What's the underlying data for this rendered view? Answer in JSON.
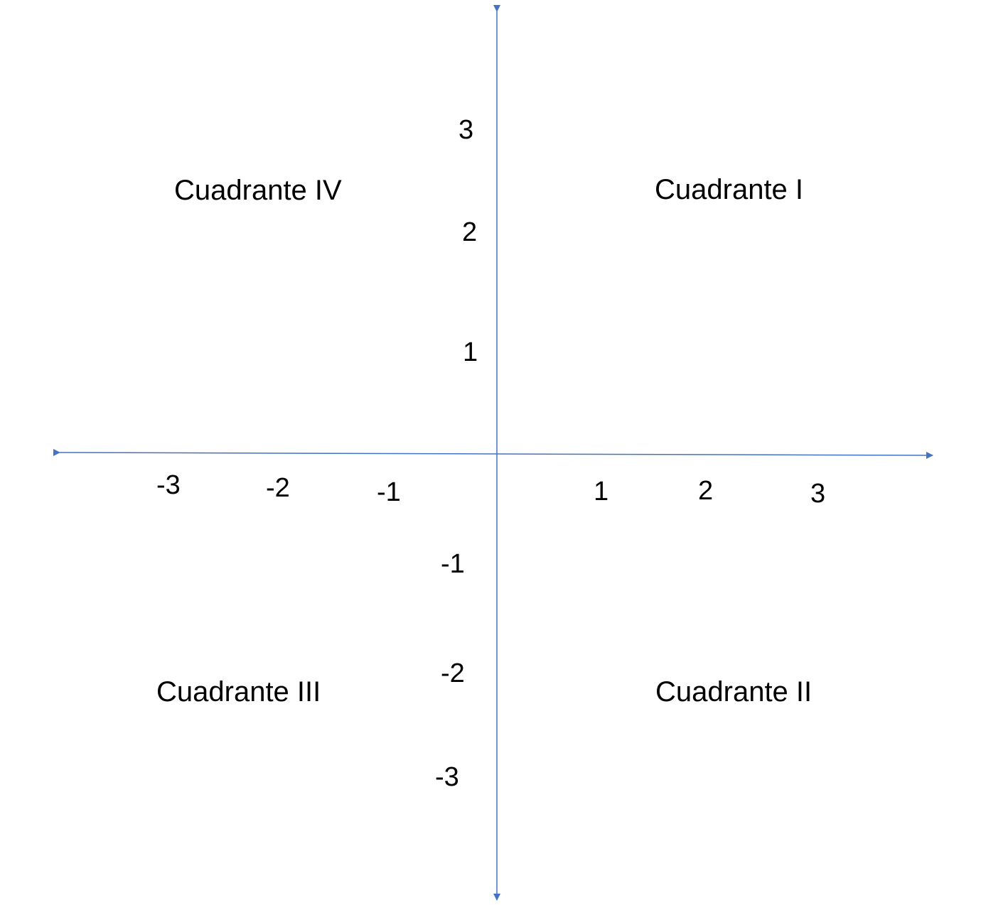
{
  "colors": {
    "axis": "#4472c4",
    "text": "#000000",
    "background": "#ffffff"
  },
  "x_ticks": [
    "-3",
    "-2",
    "-1",
    "1",
    "2",
    "3"
  ],
  "y_ticks": [
    "3",
    "2",
    "1",
    "-1",
    "-2",
    "-3"
  ],
  "quadrants": {
    "i": "Cuadrante I",
    "ii": "Cuadrante II",
    "iii": "Cuadrante III",
    "iv": "Cuadrante IV"
  }
}
